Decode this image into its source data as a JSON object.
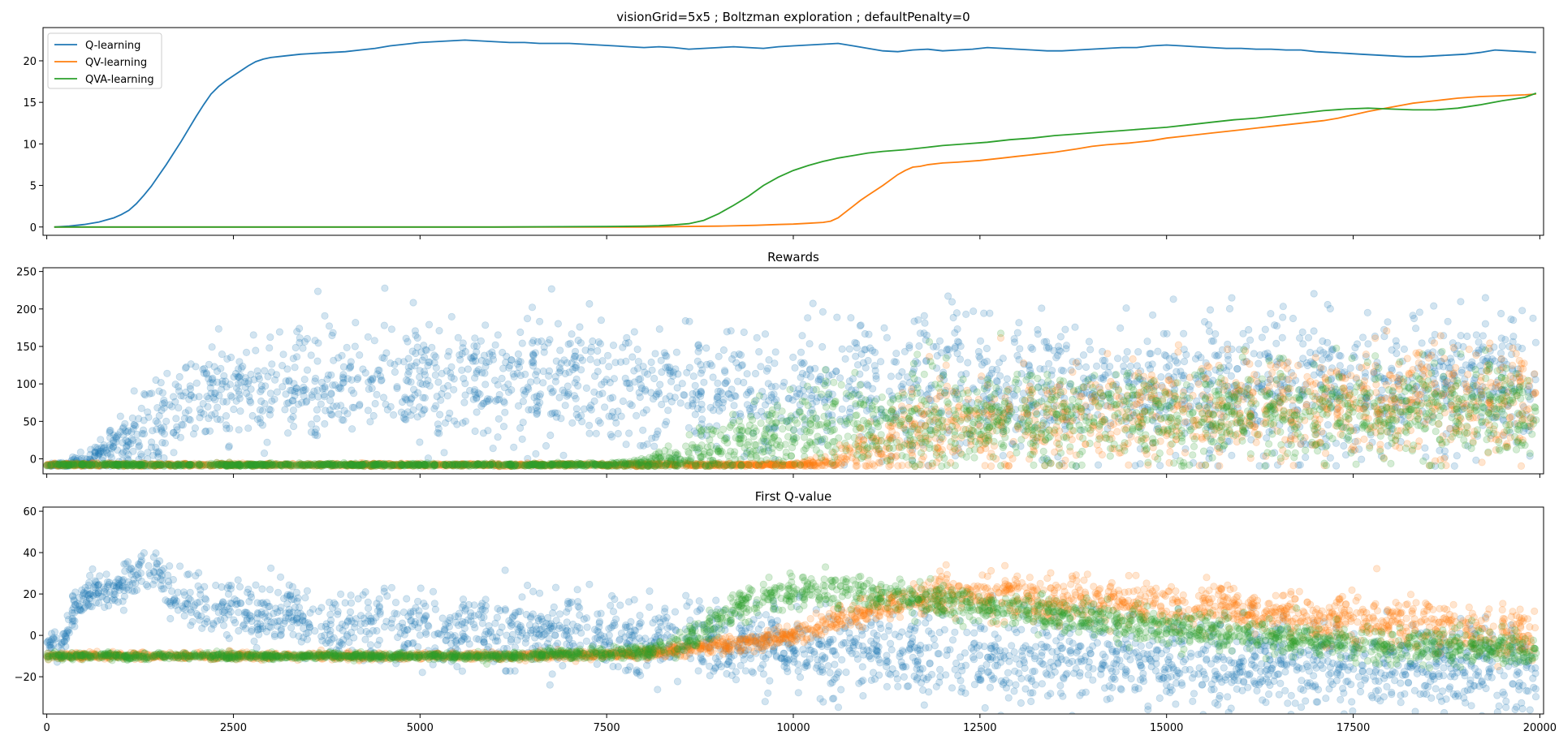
{
  "chart_data": [
    {
      "type": "line",
      "title": "visionGrid=5x5 ; Boltzman exploration ; defaultPenalty=0",
      "xlim": [
        -50,
        20050
      ],
      "ylim": [
        -1,
        24
      ],
      "yticks": [
        0,
        5,
        10,
        15,
        20
      ],
      "xticks": [
        0,
        2500,
        5000,
        7500,
        10000,
        12500,
        15000,
        17500,
        20000
      ],
      "show_xtick_labels": false,
      "grid": false,
      "legend": "top-left",
      "series": [
        {
          "name": "Q-learning",
          "color": "#1f77b4",
          "x": [
            100,
            300,
            500,
            700,
            900,
            1000,
            1100,
            1200,
            1300,
            1400,
            1500,
            1600,
            1700,
            1800,
            1900,
            2000,
            2100,
            2200,
            2300,
            2400,
            2500,
            2600,
            2700,
            2800,
            2900,
            3000,
            3200,
            3400,
            3600,
            3800,
            4000,
            4200,
            4400,
            4600,
            4800,
            5000,
            5200,
            5400,
            5600,
            5800,
            6000,
            6200,
            6400,
            6600,
            6800,
            7000,
            7200,
            7400,
            7600,
            7800,
            8000,
            8200,
            8400,
            8600,
            8800,
            9000,
            9200,
            9400,
            9600,
            9800,
            10000,
            10200,
            10400,
            10600,
            10800,
            11000,
            11200,
            11400,
            11600,
            11800,
            12000,
            12200,
            12400,
            12600,
            12800,
            13000,
            13200,
            13400,
            13600,
            13800,
            14000,
            14200,
            14400,
            14600,
            14800,
            15000,
            15200,
            15400,
            15600,
            15800,
            16000,
            16200,
            16400,
            16600,
            16800,
            17000,
            17200,
            17400,
            17600,
            17800,
            18000,
            18200,
            18400,
            18600,
            18800,
            19000,
            19200,
            19400,
            19600,
            19800,
            19950
          ],
          "y": [
            0,
            0.1,
            0.3,
            0.6,
            1.1,
            1.5,
            2.0,
            2.8,
            3.8,
            4.9,
            6.2,
            7.5,
            8.9,
            10.3,
            11.8,
            13.3,
            14.7,
            16.0,
            16.9,
            17.6,
            18.2,
            18.8,
            19.4,
            19.9,
            20.2,
            20.4,
            20.6,
            20.8,
            20.9,
            21.0,
            21.1,
            21.3,
            21.5,
            21.8,
            22.0,
            22.2,
            22.3,
            22.4,
            22.5,
            22.4,
            22.3,
            22.2,
            22.2,
            22.1,
            22.1,
            22.1,
            22.0,
            21.9,
            21.8,
            21.7,
            21.6,
            21.7,
            21.6,
            21.4,
            21.5,
            21.6,
            21.7,
            21.6,
            21.5,
            21.7,
            21.8,
            21.9,
            22.0,
            22.1,
            21.8,
            21.5,
            21.2,
            21.1,
            21.3,
            21.4,
            21.2,
            21.3,
            21.4,
            21.6,
            21.5,
            21.4,
            21.3,
            21.2,
            21.2,
            21.3,
            21.4,
            21.5,
            21.6,
            21.6,
            21.8,
            21.9,
            21.8,
            21.7,
            21.6,
            21.5,
            21.5,
            21.4,
            21.4,
            21.3,
            21.3,
            21.1,
            21.0,
            20.9,
            20.8,
            20.7,
            20.6,
            20.5,
            20.5,
            20.6,
            20.7,
            20.8,
            21.0,
            21.3,
            21.2,
            21.1,
            21.0
          ]
        },
        {
          "name": "QV-learning",
          "color": "#ff7f0e",
          "x": [
            100,
            2000,
            4000,
            6000,
            8000,
            8500,
            9000,
            9500,
            9800,
            10000,
            10200,
            10400,
            10500,
            10600,
            10700,
            10800,
            10900,
            11000,
            11200,
            11400,
            11500,
            11600,
            11700,
            11800,
            12000,
            12200,
            12500,
            12800,
            13000,
            13200,
            13500,
            13800,
            14000,
            14200,
            14500,
            14800,
            15000,
            15300,
            15600,
            15900,
            16200,
            16500,
            16800,
            17100,
            17300,
            17500,
            17700,
            18000,
            18300,
            18600,
            18900,
            19200,
            19500,
            19800,
            19950
          ],
          "y": [
            0,
            0,
            0,
            0,
            0,
            0.05,
            0.1,
            0.2,
            0.3,
            0.35,
            0.45,
            0.55,
            0.7,
            1.1,
            1.8,
            2.5,
            3.2,
            3.8,
            5.0,
            6.3,
            6.8,
            7.2,
            7.3,
            7.5,
            7.7,
            7.8,
            8.0,
            8.3,
            8.5,
            8.7,
            9.0,
            9.4,
            9.7,
            9.9,
            10.1,
            10.4,
            10.7,
            11.0,
            11.3,
            11.6,
            11.9,
            12.2,
            12.5,
            12.8,
            13.1,
            13.5,
            13.9,
            14.4,
            14.9,
            15.2,
            15.5,
            15.7,
            15.8,
            15.9,
            16.0
          ]
        },
        {
          "name": "QVA-learning",
          "color": "#2ca02c",
          "x": [
            100,
            2000,
            4000,
            6000,
            7500,
            8000,
            8200,
            8400,
            8600,
            8800,
            9000,
            9200,
            9400,
            9600,
            9800,
            10000,
            10200,
            10400,
            10600,
            10800,
            11000,
            11200,
            11500,
            11800,
            12000,
            12300,
            12600,
            12900,
            13200,
            13500,
            13800,
            14100,
            14400,
            14700,
            15000,
            15300,
            15600,
            15900,
            16200,
            16500,
            16800,
            17100,
            17400,
            17700,
            18000,
            18300,
            18600,
            18900,
            19200,
            19500,
            19800,
            19950
          ],
          "y": [
            0,
            0,
            0,
            0,
            0.05,
            0.1,
            0.15,
            0.25,
            0.4,
            0.8,
            1.6,
            2.6,
            3.7,
            5.0,
            6.0,
            6.8,
            7.4,
            7.9,
            8.3,
            8.6,
            8.9,
            9.1,
            9.3,
            9.6,
            9.8,
            10.0,
            10.2,
            10.5,
            10.7,
            11.0,
            11.2,
            11.4,
            11.6,
            11.8,
            12.0,
            12.3,
            12.6,
            12.9,
            13.1,
            13.4,
            13.7,
            14.0,
            14.2,
            14.3,
            14.2,
            14.1,
            14.1,
            14.3,
            14.7,
            15.2,
            15.6,
            16.1
          ]
        }
      ]
    },
    {
      "type": "scatter",
      "title": "Rewards",
      "xlim": [
        -50,
        20050
      ],
      "ylim": [
        -20,
        255
      ],
      "yticks": [
        0,
        50,
        100,
        150,
        200,
        250
      ],
      "xticks": [
        0,
        2500,
        5000,
        7500,
        10000,
        12500,
        15000,
        17500,
        20000
      ],
      "show_xtick_labels": false,
      "grid": false,
      "point_alpha": 0.2,
      "series": [
        {
          "name": "Q-learning",
          "color": "#1f77b4",
          "trend_x": [
            0,
            500,
            1000,
            1500,
            2000,
            2500,
            3000,
            4000,
            5000,
            6000,
            7000,
            8000,
            9000,
            10000,
            12000,
            14000,
            16000,
            18000,
            20000
          ],
          "trend_mean": [
            -8,
            -6,
            20,
            55,
            80,
            92,
            96,
            98,
            100,
            98,
            95,
            95,
            95,
            95,
            95,
            95,
            95,
            96,
            98
          ],
          "trend_spread": [
            1,
            5,
            20,
            30,
            35,
            38,
            40,
            40,
            40,
            40,
            40,
            40,
            42,
            45,
            45,
            45,
            45,
            45,
            45
          ]
        },
        {
          "name": "QV-learning",
          "color": "#ff7f0e",
          "trend_x": [
            0,
            2000,
            4000,
            6000,
            8000,
            10000,
            10500,
            11000,
            11500,
            12000,
            13000,
            14000,
            15000,
            16000,
            17000,
            18000,
            19000,
            20000
          ],
          "trend_mean": [
            -8,
            -8,
            -8,
            -8,
            -8,
            -8,
            -6,
            10,
            28,
            40,
            50,
            55,
            60,
            65,
            70,
            75,
            78,
            80
          ],
          "trend_spread": [
            1,
            1,
            1,
            1,
            1,
            1,
            5,
            20,
            25,
            30,
            30,
            32,
            35,
            35,
            35,
            35,
            38,
            40
          ]
        },
        {
          "name": "QVA-learning",
          "color": "#2ca02c",
          "trend_x": [
            0,
            2000,
            4000,
            6000,
            7500,
            8000,
            8500,
            9000,
            9500,
            10000,
            11000,
            12000,
            13000,
            14000,
            15000,
            16000,
            17000,
            18000,
            19000,
            20000
          ],
          "trend_mean": [
            -8,
            -8,
            -8,
            -8,
            -8,
            -7,
            0,
            12,
            25,
            35,
            45,
            50,
            55,
            58,
            60,
            62,
            62,
            63,
            65,
            65
          ],
          "trend_spread": [
            1,
            1,
            1,
            1,
            1,
            3,
            12,
            20,
            25,
            28,
            30,
            30,
            30,
            30,
            30,
            30,
            30,
            30,
            30,
            32
          ]
        }
      ]
    },
    {
      "type": "scatter",
      "title": "First Q-value",
      "xlim": [
        -50,
        20050
      ],
      "ylim": [
        -38,
        62
      ],
      "yticks": [
        -20,
        0,
        20,
        40,
        60
      ],
      "xticks": [
        0,
        2500,
        5000,
        7500,
        10000,
        12500,
        15000,
        17500,
        20000
      ],
      "xtick_labels": [
        "0",
        "2500",
        "5000",
        "7500",
        "10000",
        "12500",
        "15000",
        "17500",
        "20000"
      ],
      "grid": false,
      "point_alpha": 0.2,
      "series": [
        {
          "name": "Q-learning",
          "color": "#1f77b4",
          "trend_x": [
            0,
            100,
            200,
            300,
            400,
            600,
            800,
            1000,
            1200,
            1300,
            1500,
            1800,
            2200,
            3000,
            4000,
            5000,
            6000,
            7000,
            8000,
            9000,
            10000,
            11000,
            12000,
            13000,
            14000,
            15000,
            16000,
            17000,
            18000,
            19000,
            20000
          ],
          "trend_mean": [
            -5,
            -2,
            -6,
            5,
            15,
            20,
            22,
            24,
            30,
            33,
            28,
            18,
            14,
            10,
            6,
            4,
            2,
            0,
            -2,
            -4,
            -6,
            -8,
            -10,
            -11,
            -12,
            -13,
            -14,
            -15,
            -16,
            -17,
            -18
          ],
          "trend_spread": [
            2,
            4,
            3,
            4,
            4,
            4,
            4,
            5,
            5,
            6,
            6,
            6,
            7,
            8,
            9,
            9,
            9,
            9,
            9,
            9,
            10,
            10,
            10,
            10,
            10,
            10,
            10,
            10,
            10,
            10,
            10
          ]
        },
        {
          "name": "QV-learning",
          "color": "#ff7f0e",
          "trend_x": [
            0,
            2000,
            4000,
            6000,
            8000,
            8500,
            9000,
            9500,
            10000,
            10300,
            10600,
            10800,
            11000,
            11500,
            12000,
            12500,
            13000,
            14000,
            15000,
            16000,
            17000,
            18000,
            19000,
            20000
          ],
          "trend_mean": [
            -10,
            -10,
            -10,
            -10,
            -9,
            -7,
            -5,
            -3,
            0,
            3,
            7,
            10,
            12,
            16,
            20,
            20,
            19,
            17,
            15,
            12,
            9,
            6,
            3,
            0
          ],
          "trend_spread": [
            0.8,
            0.8,
            0.8,
            0.8,
            1,
            1.5,
            2,
            2,
            2,
            3,
            3,
            3,
            4,
            4,
            5,
            5,
            5,
            5,
            5,
            5,
            6,
            6,
            6,
            6
          ]
        },
        {
          "name": "QVA-learning",
          "color": "#2ca02c",
          "trend_x": [
            0,
            2000,
            4000,
            6000,
            8000,
            8500,
            9000,
            9500,
            10000,
            10500,
            11000,
            12000,
            13000,
            14000,
            15000,
            16000,
            17000,
            18000,
            19000,
            20000
          ],
          "trend_mean": [
            -10,
            -10,
            -10,
            -10,
            -8,
            -4,
            8,
            18,
            22,
            22,
            20,
            16,
            12,
            8,
            4,
            0,
            -3,
            -5,
            -6,
            -7
          ],
          "trend_spread": [
            0.8,
            0.8,
            0.8,
            0.8,
            1.5,
            3,
            4,
            4,
            4,
            4,
            4,
            4,
            4,
            4,
            4,
            4,
            4,
            4,
            4,
            4
          ]
        }
      ]
    }
  ]
}
